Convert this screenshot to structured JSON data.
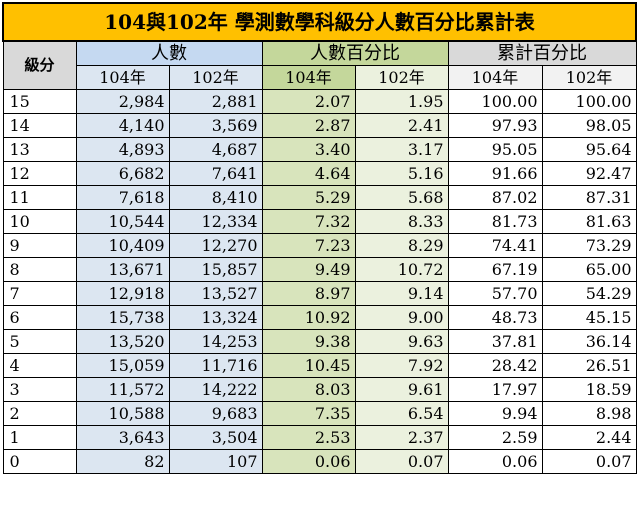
{
  "title": "104與102年 學測數學科級分人數百分比累計表",
  "headers": {
    "grade": "級分",
    "count": "人數",
    "percent": "人數百分比",
    "cumulative": "累計百分比",
    "year104": "104年",
    "year102": "102年"
  },
  "rows": [
    {
      "grade": "15",
      "count104": "2,984",
      "count102": "2,881",
      "pct104": "2.07",
      "pct102": "1.95",
      "cum104": "100.00",
      "cum102": "100.00"
    },
    {
      "grade": "14",
      "count104": "4,140",
      "count102": "3,569",
      "pct104": "2.87",
      "pct102": "2.41",
      "cum104": "97.93",
      "cum102": "98.05"
    },
    {
      "grade": "13",
      "count104": "4,893",
      "count102": "4,687",
      "pct104": "3.40",
      "pct102": "3.17",
      "cum104": "95.05",
      "cum102": "95.64"
    },
    {
      "grade": "12",
      "count104": "6,682",
      "count102": "7,641",
      "pct104": "4.64",
      "pct102": "5.16",
      "cum104": "91.66",
      "cum102": "92.47"
    },
    {
      "grade": "11",
      "count104": "7,618",
      "count102": "8,410",
      "pct104": "5.29",
      "pct102": "5.68",
      "cum104": "87.02",
      "cum102": "87.31"
    },
    {
      "grade": "10",
      "count104": "10,544",
      "count102": "12,334",
      "pct104": "7.32",
      "pct102": "8.33",
      "cum104": "81.73",
      "cum102": "81.63"
    },
    {
      "grade": "9",
      "count104": "10,409",
      "count102": "12,270",
      "pct104": "7.23",
      "pct102": "8.29",
      "cum104": "74.41",
      "cum102": "73.29"
    },
    {
      "grade": "8",
      "count104": "13,671",
      "count102": "15,857",
      "pct104": "9.49",
      "pct102": "10.72",
      "cum104": "67.19",
      "cum102": "65.00"
    },
    {
      "grade": "7",
      "count104": "12,918",
      "count102": "13,527",
      "pct104": "8.97",
      "pct102": "9.14",
      "cum104": "57.70",
      "cum102": "54.29"
    },
    {
      "grade": "6",
      "count104": "15,738",
      "count102": "13,324",
      "pct104": "10.92",
      "pct102": "9.00",
      "cum104": "48.73",
      "cum102": "45.15"
    },
    {
      "grade": "5",
      "count104": "13,520",
      "count102": "14,253",
      "pct104": "9.38",
      "pct102": "9.63",
      "cum104": "37.81",
      "cum102": "36.14"
    },
    {
      "grade": "4",
      "count104": "15,059",
      "count102": "11,716",
      "pct104": "10.45",
      "pct102": "7.92",
      "cum104": "28.42",
      "cum102": "26.51"
    },
    {
      "grade": "3",
      "count104": "11,572",
      "count102": "14,222",
      "pct104": "8.03",
      "pct102": "9.61",
      "cum104": "17.97",
      "cum102": "18.59"
    },
    {
      "grade": "2",
      "count104": "10,588",
      "count102": "9,683",
      "pct104": "7.35",
      "pct102": "6.54",
      "cum104": "9.94",
      "cum102": "8.98"
    },
    {
      "grade": "1",
      "count104": "3,643",
      "count102": "3,504",
      "pct104": "2.53",
      "pct102": "2.37",
      "cum104": "2.59",
      "cum102": "2.44"
    },
    {
      "grade": "0",
      "count104": "82",
      "count102": "107",
      "pct104": "0.06",
      "pct102": "0.07",
      "cum104": "0.06",
      "cum102": "0.07"
    }
  ]
}
